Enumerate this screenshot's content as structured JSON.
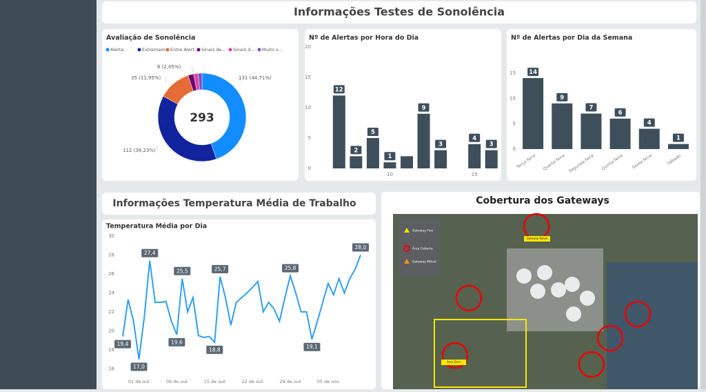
{
  "header": {
    "title": "Informações Testes de Sonolência"
  },
  "temperature_header": {
    "title": "Informações Temperatura Média de Trabalho"
  },
  "gateways": {
    "title": "Cobertura dos Gateways",
    "legend": [
      "Gateway Fixo",
      "Área Coberta",
      "Gateway Móvel"
    ],
    "map_labels": [
      "Gateway Móvel",
      "Área Zero"
    ]
  },
  "chart_data": [
    {
      "type": "pie",
      "title": "Avaliação de Sonolência",
      "categories": [
        "Alerta",
        "Extremam...",
        "Entre Alert...",
        "Sinais de...",
        "Sinais d...",
        "Muito s..."
      ],
      "values": [
        131,
        112,
        35,
        6,
        5,
        4
      ],
      "value_labels": [
        "131 (44,71%)",
        "112 (38,23%)",
        "35 (11,95%)",
        "6 (2,05%)",
        null,
        null
      ],
      "colors": [
        "#118dff",
        "#12239e",
        "#e66c37",
        "#6b007b",
        "#e044a7",
        "#744ec2"
      ],
      "total": 293
    },
    {
      "type": "bar",
      "title": "Nº de Alertas por Hora do Dia",
      "x": [
        7,
        8,
        9,
        10,
        11,
        12,
        13,
        15,
        16
      ],
      "values": [
        12,
        2,
        5,
        1,
        2,
        9,
        3,
        4,
        3
      ],
      "value_labels": [
        "12",
        "2",
        "5",
        "1",
        null,
        "9",
        "3",
        "4",
        "3"
      ],
      "color": "#3e4f5b",
      "xlim": [
        5.5,
        16.5
      ],
      "xticks": [
        10,
        15
      ],
      "ylim": [
        0,
        20
      ],
      "yticks": [
        0,
        5,
        10,
        15,
        20
      ]
    },
    {
      "type": "bar",
      "title": "Nº de Alertas por Dia da Semana",
      "categories": [
        "Terça-feira",
        "Quarta-feira",
        "Segunda-feira",
        "Quinta-feira",
        "Sexta-feira",
        "Sábado"
      ],
      "values": [
        14,
        9,
        7,
        6,
        4,
        1
      ],
      "color": "#3e4f5b",
      "ylim": [
        0,
        20
      ],
      "yticks": [
        0,
        5,
        10,
        15
      ]
    },
    {
      "type": "line",
      "title": "Temperatura Média por Dia",
      "categories": [
        null,
        null,
        null,
        "01 de out",
        null,
        null,
        null,
        null,
        null,
        null,
        "08 de out",
        null,
        null,
        null,
        null,
        null,
        null,
        "15 de out",
        null,
        null,
        null,
        null,
        null,
        null,
        "22 de out",
        null,
        null,
        null,
        null,
        null,
        null,
        "29 de out",
        null,
        null,
        null,
        null,
        null,
        null,
        "05 de nov",
        null,
        null,
        null,
        null,
        null,
        null
      ],
      "values": [
        19.4,
        23.3,
        21.0,
        17.0,
        21.5,
        27.4,
        23.0,
        23.0,
        23.1,
        21.0,
        19.6,
        25.5,
        22.0,
        23.5,
        19.5,
        19.3,
        19.4,
        18.8,
        25.7,
        23.5,
        20.6,
        23.0,
        23.5,
        24.0,
        24.6,
        25.2,
        22.0,
        23.0,
        22.3,
        21.0,
        23.5,
        25.8,
        24.0,
        22.0,
        22.0,
        19.1,
        21.0,
        23.0,
        25.0,
        23.8,
        25.5,
        24.0,
        25.5,
        26.5,
        28.0
      ],
      "value_labels": [
        "19,4",
        null,
        null,
        "17,0",
        null,
        "27,4",
        null,
        null,
        null,
        null,
        "19,6",
        "25,5",
        null,
        null,
        null,
        null,
        null,
        "18,8",
        "25,7",
        null,
        null,
        null,
        null,
        null,
        null,
        null,
        null,
        null,
        null,
        null,
        null,
        "25,8",
        null,
        null,
        null,
        "19,1",
        null,
        null,
        null,
        null,
        null,
        null,
        null,
        null,
        "28,0"
      ],
      "color": "#2f9df4",
      "ylim": [
        15,
        30
      ],
      "yticks": [
        16,
        18,
        20,
        22,
        24,
        26,
        28,
        30
      ]
    }
  ]
}
